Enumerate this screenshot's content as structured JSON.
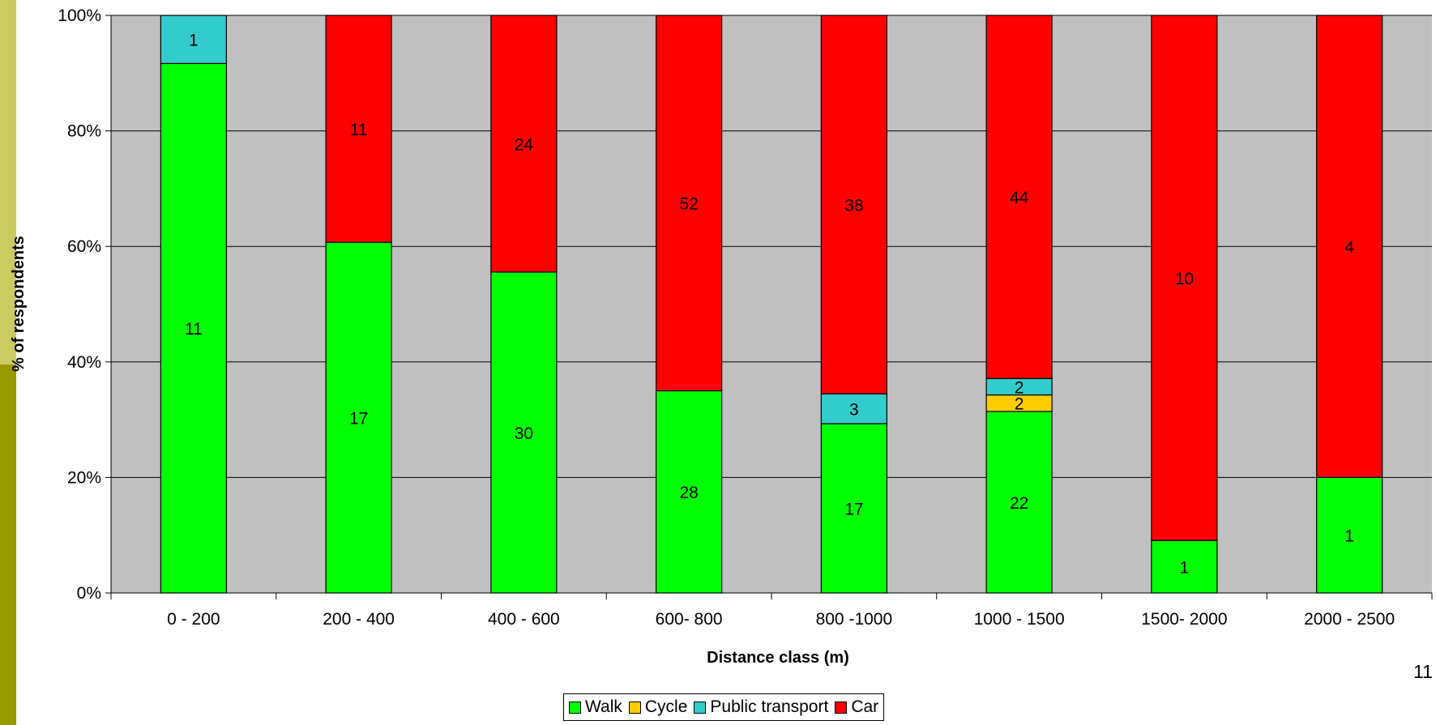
{
  "slide": {
    "page_number": "11"
  },
  "chart_data": {
    "type": "bar",
    "stacked": "percent",
    "title": "",
    "xlabel": "Distance class (m)",
    "ylabel": "% of respondents",
    "ylim": [
      0,
      100
    ],
    "yticks": [
      "0%",
      "20%",
      "40%",
      "60%",
      "80%",
      "100%"
    ],
    "grid": true,
    "plot_background": "#c0c0c0",
    "legend_position": "bottom",
    "categories": [
      "0 - 200",
      "200 - 400",
      "400 - 600",
      "600- 800",
      "800 -1000",
      "1000 - 1500",
      "1500- 2000",
      "2000 - 2500"
    ],
    "series": [
      {
        "name": "Walk",
        "color": "#00ff00",
        "values": [
          11,
          17,
          30,
          28,
          17,
          22,
          1,
          1
        ]
      },
      {
        "name": "Cycle",
        "color": "#ffcc00",
        "values": [
          0,
          0,
          0,
          0,
          0,
          2,
          0,
          0
        ]
      },
      {
        "name": "Public transport",
        "color": "#33cccc",
        "values": [
          1,
          0,
          0,
          0,
          3,
          2,
          0,
          0
        ]
      },
      {
        "name": "Car",
        "color": "#ff0000",
        "values": [
          0,
          11,
          24,
          52,
          38,
          44,
          10,
          4
        ]
      }
    ]
  }
}
